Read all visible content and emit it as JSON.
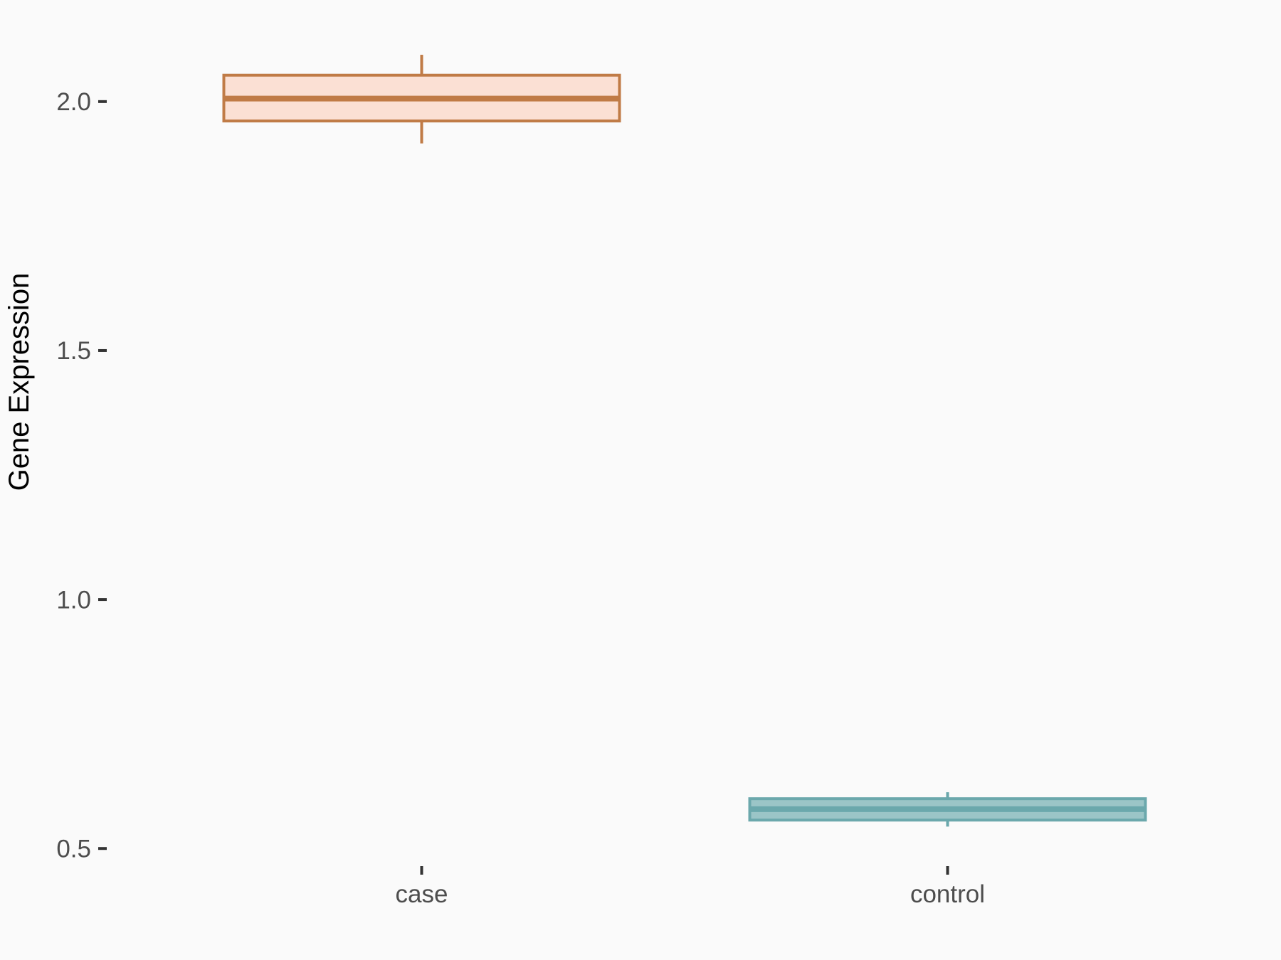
{
  "figure": {
    "background_color": "#fafafa"
  },
  "chart_data": {
    "type": "boxplot",
    "title": "",
    "xlabel": "",
    "ylabel": "Gene Expression",
    "categories": [
      "case",
      "control"
    ],
    "series": [
      {
        "name": "case",
        "min": 1.916,
        "q1": 1.961,
        "median": 2.006,
        "q3": 2.053,
        "max": 2.094,
        "stroke_color": "#c07b46",
        "fill_color": "#fbe0d4"
      },
      {
        "name": "control",
        "min": 0.544,
        "q1": 0.557,
        "median": 0.579,
        "q3": 0.6,
        "max": 0.613,
        "stroke_color": "#6ba8ac",
        "fill_color": "#9bc5c7"
      }
    ],
    "yticks": [
      0.5,
      1.0,
      1.5,
      2.0
    ],
    "ytick_labels": [
      "0.5",
      "1.0",
      "1.5",
      "2.0"
    ],
    "ylim": [
      0.476,
      2.204
    ],
    "grid": false,
    "legend_position": "none",
    "axis_text_color": "#4d4d4d",
    "tick_mark_color": "#333333",
    "title_color": "#000000"
  }
}
